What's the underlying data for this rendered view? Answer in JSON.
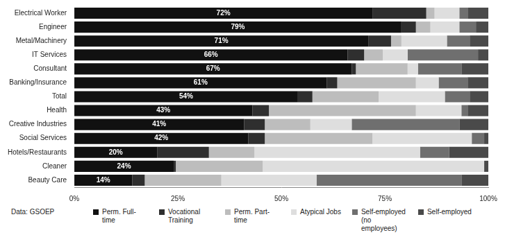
{
  "chart_data": {
    "type": "bar",
    "orientation": "horizontal",
    "stacked": true,
    "grid": false,
    "legend": "bottom",
    "annotations": [
      "Data: GSOEP"
    ],
    "categories": [
      "Electrical Worker",
      "Engineer",
      "Metal/Machinery",
      "IT Services",
      "Consultant",
      "Banking/Insurance",
      "Total",
      "Health",
      "Creative Industries",
      "Social Services",
      "Hotels/Restaurants",
      "Cleaner",
      "Beauty Care"
    ],
    "xlim": [
      0,
      100
    ],
    "xticks": [
      {
        "value": 0,
        "label": "0%"
      },
      {
        "value": 25,
        "label": "25%"
      },
      {
        "value": 50,
        "label": "50%"
      },
      {
        "value": 75,
        "label": "75%"
      },
      {
        "value": 100,
        "label": "100%"
      }
    ],
    "series": [
      {
        "name": "Perm. Full-time",
        "color": "#111111",
        "data_labels": true,
        "values": [
          72,
          79,
          71,
          66,
          67,
          61,
          54,
          43,
          41,
          42,
          20,
          24,
          14
        ],
        "value_labels": [
          "72%",
          "79%",
          "71%",
          "66%",
          "67%",
          "61%",
          "54%",
          "43%",
          "41%",
          "42%",
          "20%",
          "24%",
          "14%"
        ]
      },
      {
        "name": "Vocational Training",
        "color": "#2f2f2f",
        "values": [
          13,
          3.5,
          5.5,
          4,
          1,
          2.5,
          3.5,
          4,
          5,
          4,
          12.5,
          0.5,
          3
        ]
      },
      {
        "name": "Perm. Part-time",
        "color": "#bdbdbd",
        "values": [
          2,
          3.5,
          2.5,
          4.5,
          12.5,
          19,
          16,
          35.5,
          11,
          26,
          11,
          21,
          18.5
        ]
      },
      {
        "name": "Atypical Jobs",
        "color": "#dedede",
        "values": [
          6,
          7,
          11,
          6,
          2.5,
          5.5,
          16,
          11,
          10,
          24,
          40,
          53.5,
          23
        ]
      },
      {
        "name": "Self-employed (no employees)",
        "color": "#6f6f6f",
        "values": [
          2,
          4,
          5.5,
          17,
          10.5,
          7,
          6,
          1.5,
          26,
          3,
          7,
          0,
          35
        ]
      },
      {
        "name": "Self-employed",
        "color": "#4a4a4a",
        "values": [
          5,
          3,
          4.5,
          2.5,
          6.5,
          5,
          4.5,
          5,
          7,
          1,
          9.5,
          1,
          6.5
        ]
      }
    ]
  }
}
